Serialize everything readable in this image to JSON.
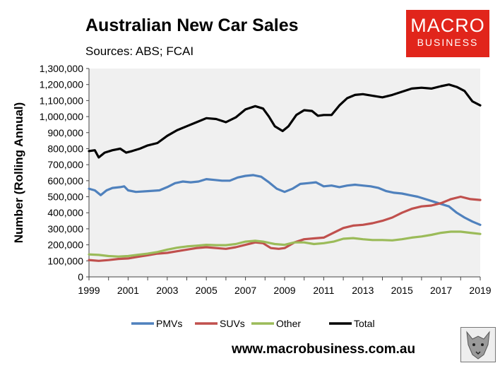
{
  "header": {
    "title": "Australian New Car Sales",
    "sources": "Sources: ABS; FCAI"
  },
  "logo": {
    "line1": "MACRO",
    "line2": "BUSINESS",
    "color": "#e1251b"
  },
  "footer": {
    "url": "www.macrobusiness.com.au",
    "mascot_icon": "wolf-icon"
  },
  "chart_data": {
    "type": "line",
    "title": "Australian New Car Sales",
    "xlabel": "",
    "ylabel": "Number (Rolling Annual)",
    "xlim": [
      1999,
      2019
    ],
    "ylim": [
      0,
      1300000
    ],
    "x_ticks": [
      "1999",
      "2001",
      "2003",
      "2005",
      "2007",
      "2009",
      "2011",
      "2013",
      "2015",
      "2017",
      "2019"
    ],
    "y_ticks": [
      "0",
      "100,000",
      "200,000",
      "300,000",
      "400,000",
      "500,000",
      "600,000",
      "700,000",
      "800,000",
      "900,000",
      "1,000,000",
      "1,100,000",
      "1,200,000",
      "1,300,000"
    ],
    "grid": false,
    "legend": "bottom",
    "plot_background": "#f0f0f0",
    "series": [
      {
        "name": "PMVs",
        "color": "#4f81bd",
        "points": [
          [
            1999,
            550000
          ],
          [
            1999.3,
            540000
          ],
          [
            1999.6,
            510000
          ],
          [
            1999.9,
            540000
          ],
          [
            2000.2,
            555000
          ],
          [
            2000.6,
            560000
          ],
          [
            2000.8,
            565000
          ],
          [
            2001.0,
            540000
          ],
          [
            2001.4,
            530000
          ],
          [
            2002.0,
            535000
          ],
          [
            2002.6,
            540000
          ],
          [
            2003.0,
            560000
          ],
          [
            2003.4,
            585000
          ],
          [
            2003.8,
            595000
          ],
          [
            2004.2,
            590000
          ],
          [
            2004.6,
            595000
          ],
          [
            2005.0,
            610000
          ],
          [
            2005.4,
            605000
          ],
          [
            2005.8,
            600000
          ],
          [
            2006.2,
            600000
          ],
          [
            2006.6,
            620000
          ],
          [
            2007.0,
            630000
          ],
          [
            2007.4,
            635000
          ],
          [
            2007.8,
            625000
          ],
          [
            2008.2,
            590000
          ],
          [
            2008.6,
            550000
          ],
          [
            2009.0,
            530000
          ],
          [
            2009.4,
            550000
          ],
          [
            2009.8,
            580000
          ],
          [
            2010.2,
            585000
          ],
          [
            2010.6,
            590000
          ],
          [
            2011.0,
            565000
          ],
          [
            2011.4,
            570000
          ],
          [
            2011.8,
            560000
          ],
          [
            2012.2,
            570000
          ],
          [
            2012.6,
            575000
          ],
          [
            2013.0,
            570000
          ],
          [
            2013.4,
            565000
          ],
          [
            2013.8,
            555000
          ],
          [
            2014.2,
            535000
          ],
          [
            2014.6,
            525000
          ],
          [
            2015.0,
            520000
          ],
          [
            2015.4,
            510000
          ],
          [
            2015.8,
            500000
          ],
          [
            2016.2,
            485000
          ],
          [
            2016.6,
            470000
          ],
          [
            2017.0,
            455000
          ],
          [
            2017.4,
            440000
          ],
          [
            2017.8,
            400000
          ],
          [
            2018.2,
            370000
          ],
          [
            2018.6,
            345000
          ],
          [
            2019.0,
            325000
          ]
        ]
      },
      {
        "name": "SUVs",
        "color": "#c0504d",
        "points": [
          [
            1999,
            105000
          ],
          [
            1999.5,
            100000
          ],
          [
            2000,
            105000
          ],
          [
            2000.5,
            112000
          ],
          [
            2001,
            115000
          ],
          [
            2001.5,
            125000
          ],
          [
            2002,
            135000
          ],
          [
            2002.5,
            145000
          ],
          [
            2003,
            150000
          ],
          [
            2003.5,
            160000
          ],
          [
            2004,
            170000
          ],
          [
            2004.5,
            180000
          ],
          [
            2005,
            185000
          ],
          [
            2005.5,
            180000
          ],
          [
            2006,
            175000
          ],
          [
            2006.5,
            185000
          ],
          [
            2007,
            200000
          ],
          [
            2007.5,
            215000
          ],
          [
            2007.9,
            210000
          ],
          [
            2008.3,
            180000
          ],
          [
            2008.7,
            175000
          ],
          [
            2009,
            180000
          ],
          [
            2009.5,
            215000
          ],
          [
            2010,
            235000
          ],
          [
            2010.5,
            240000
          ],
          [
            2011,
            245000
          ],
          [
            2011.5,
            275000
          ],
          [
            2012,
            305000
          ],
          [
            2012.5,
            320000
          ],
          [
            2013,
            325000
          ],
          [
            2013.5,
            335000
          ],
          [
            2014,
            350000
          ],
          [
            2014.5,
            370000
          ],
          [
            2015,
            400000
          ],
          [
            2015.5,
            425000
          ],
          [
            2016,
            440000
          ],
          [
            2016.5,
            445000
          ],
          [
            2017,
            460000
          ],
          [
            2017.5,
            485000
          ],
          [
            2018,
            500000
          ],
          [
            2018.5,
            485000
          ],
          [
            2019,
            480000
          ]
        ]
      },
      {
        "name": "Other",
        "color": "#9bbb59",
        "points": [
          [
            1999,
            140000
          ],
          [
            1999.5,
            137000
          ],
          [
            2000,
            130000
          ],
          [
            2000.5,
            127000
          ],
          [
            2001,
            130000
          ],
          [
            2001.5,
            138000
          ],
          [
            2002,
            145000
          ],
          [
            2002.5,
            155000
          ],
          [
            2003,
            170000
          ],
          [
            2003.5,
            182000
          ],
          [
            2004,
            190000
          ],
          [
            2004.5,
            195000
          ],
          [
            2005,
            200000
          ],
          [
            2005.5,
            198000
          ],
          [
            2006,
            198000
          ],
          [
            2006.5,
            205000
          ],
          [
            2007,
            220000
          ],
          [
            2007.5,
            225000
          ],
          [
            2007.9,
            220000
          ],
          [
            2008.5,
            205000
          ],
          [
            2009,
            200000
          ],
          [
            2009.5,
            215000
          ],
          [
            2010,
            215000
          ],
          [
            2010.5,
            205000
          ],
          [
            2011,
            210000
          ],
          [
            2011.5,
            220000
          ],
          [
            2012,
            238000
          ],
          [
            2012.5,
            242000
          ],
          [
            2013,
            235000
          ],
          [
            2013.5,
            230000
          ],
          [
            2014,
            230000
          ],
          [
            2014.5,
            228000
          ],
          [
            2015,
            235000
          ],
          [
            2015.5,
            245000
          ],
          [
            2016,
            252000
          ],
          [
            2016.5,
            262000
          ],
          [
            2017,
            275000
          ],
          [
            2017.5,
            282000
          ],
          [
            2018,
            282000
          ],
          [
            2018.5,
            275000
          ],
          [
            2019,
            268000
          ]
        ]
      },
      {
        "name": "Total",
        "color": "#000000",
        "points": [
          [
            1999,
            785000
          ],
          [
            1999.3,
            790000
          ],
          [
            1999.5,
            745000
          ],
          [
            1999.8,
            775000
          ],
          [
            2000.2,
            790000
          ],
          [
            2000.6,
            800000
          ],
          [
            2000.9,
            775000
          ],
          [
            2001.2,
            785000
          ],
          [
            2001.6,
            800000
          ],
          [
            2002.0,
            820000
          ],
          [
            2002.5,
            835000
          ],
          [
            2003.0,
            880000
          ],
          [
            2003.5,
            915000
          ],
          [
            2004.0,
            940000
          ],
          [
            2004.5,
            965000
          ],
          [
            2005.0,
            990000
          ],
          [
            2005.5,
            985000
          ],
          [
            2006.0,
            965000
          ],
          [
            2006.5,
            995000
          ],
          [
            2007.0,
            1045000
          ],
          [
            2007.5,
            1065000
          ],
          [
            2007.9,
            1050000
          ],
          [
            2008.2,
            1000000
          ],
          [
            2008.5,
            940000
          ],
          [
            2008.9,
            910000
          ],
          [
            2009.2,
            940000
          ],
          [
            2009.6,
            1010000
          ],
          [
            2010.0,
            1040000
          ],
          [
            2010.4,
            1035000
          ],
          [
            2010.7,
            1005000
          ],
          [
            2011.0,
            1010000
          ],
          [
            2011.4,
            1010000
          ],
          [
            2011.8,
            1070000
          ],
          [
            2012.2,
            1115000
          ],
          [
            2012.6,
            1135000
          ],
          [
            2013.0,
            1140000
          ],
          [
            2013.5,
            1130000
          ],
          [
            2014.0,
            1120000
          ],
          [
            2014.5,
            1135000
          ],
          [
            2015.0,
            1155000
          ],
          [
            2015.5,
            1175000
          ],
          [
            2016.0,
            1180000
          ],
          [
            2016.5,
            1175000
          ],
          [
            2017.0,
            1190000
          ],
          [
            2017.4,
            1200000
          ],
          [
            2017.8,
            1185000
          ],
          [
            2018.2,
            1160000
          ],
          [
            2018.6,
            1095000
          ],
          [
            2019.0,
            1070000
          ]
        ]
      }
    ]
  }
}
